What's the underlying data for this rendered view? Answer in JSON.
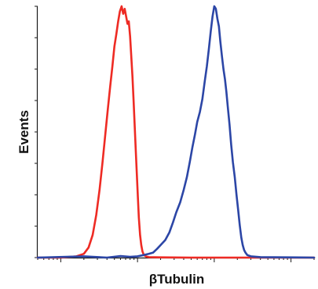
{
  "chart_data": {
    "type": "line",
    "title": "",
    "xlabel": "βTubulin",
    "ylabel": "Events",
    "x_scale": "log",
    "xlim": [
      0.5,
      2000
    ],
    "ylim": [
      0,
      100
    ],
    "x_tick_labels": [],
    "y_tick_labels": [],
    "grid": false,
    "legend": "none",
    "series": [
      {
        "color": "#ee2b24",
        "x": [
          0.5,
          1.0,
          1.6,
          2.0,
          2.3,
          2.6,
          2.9,
          3.2,
          3.5,
          3.8,
          4.1,
          4.4,
          4.7,
          5.0,
          5.3,
          5.6,
          5.9,
          6.2,
          6.5,
          6.8,
          7.1,
          7.4,
          7.7,
          8.0,
          8.3,
          8.6,
          8.9,
          9.2,
          9.5,
          9.8,
          10.1,
          10.4,
          10.8,
          11.2,
          11.6,
          12.1,
          13.0,
          14.0,
          20.0,
          50.0,
          200.0,
          2000.0
        ],
        "y": [
          0,
          0,
          0.5,
          1.5,
          4,
          9,
          17,
          27,
          38,
          49,
          59,
          68,
          76,
          84,
          89,
          94,
          98,
          100,
          97,
          99,
          96,
          93,
          94,
          88,
          80,
          72,
          62,
          52,
          42,
          33,
          24,
          16,
          9,
          5,
          2.5,
          1,
          0.4,
          0.2,
          0.1,
          0,
          0,
          0
        ]
      },
      {
        "color": "#2c46a6",
        "x": [
          0.5,
          2.0,
          4.0,
          6.0,
          8.0,
          10.0,
          12.0,
          14.0,
          16.0,
          18.0,
          20.0,
          23.0,
          26.0,
          29.0,
          32.0,
          36.0,
          40.0,
          44.0,
          48.0,
          52.0,
          56.0,
          60.0,
          65.0,
          70.0,
          75.0,
          80.0,
          85.0,
          90.0,
          95.0,
          100.0,
          105.0,
          110.0,
          115.0,
          120.0,
          126.0,
          132.0,
          138.0,
          144.0,
          150.0,
          158.0,
          166.0,
          175.0,
          185.0,
          195.0,
          205.0,
          215.0,
          225.0,
          235.0,
          245.0,
          255.0,
          270.0,
          300.0,
          400.0,
          2000.0
        ],
        "y": [
          0,
          0.5,
          0,
          0.6,
          0.3,
          0.5,
          1,
          1.5,
          2,
          3.5,
          5,
          7,
          10,
          14,
          18,
          22,
          27,
          32,
          38,
          44,
          49,
          54,
          58,
          63,
          70,
          76,
          83,
          90,
          96,
          100,
          99,
          95,
          92,
          86,
          80,
          75,
          71,
          66,
          60,
          53,
          45,
          38,
          32,
          25,
          19,
          13,
          8,
          5,
          3,
          2,
          1,
          0.5,
          0.2,
          0
        ]
      }
    ]
  }
}
